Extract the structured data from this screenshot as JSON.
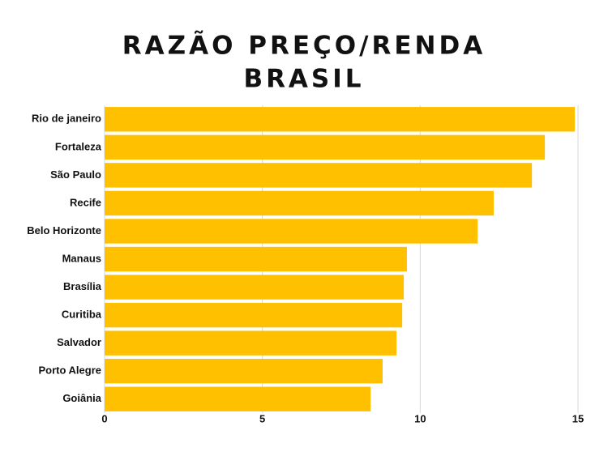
{
  "chart_data": {
    "type": "hbar",
    "title": [
      "RAZÃO PREÇO/RENDA",
      "BRASIL"
    ],
    "categories": [
      "Rio de janeiro",
      "Fortaleza",
      "São Paulo",
      "Recife",
      "Belo Horizonte",
      "Manaus",
      "Brasília",
      "Curitiba",
      "Salvador",
      "Porto Alegre",
      "Goiânia"
    ],
    "values": [
      14.9,
      13.95,
      13.54,
      12.33,
      11.82,
      9.58,
      9.48,
      9.43,
      9.25,
      8.81,
      8.43
    ],
    "color": "#ffc000",
    "xlim": [
      0,
      15
    ],
    "xticks": [
      0,
      5,
      10,
      15
    ],
    "grid": true
  }
}
